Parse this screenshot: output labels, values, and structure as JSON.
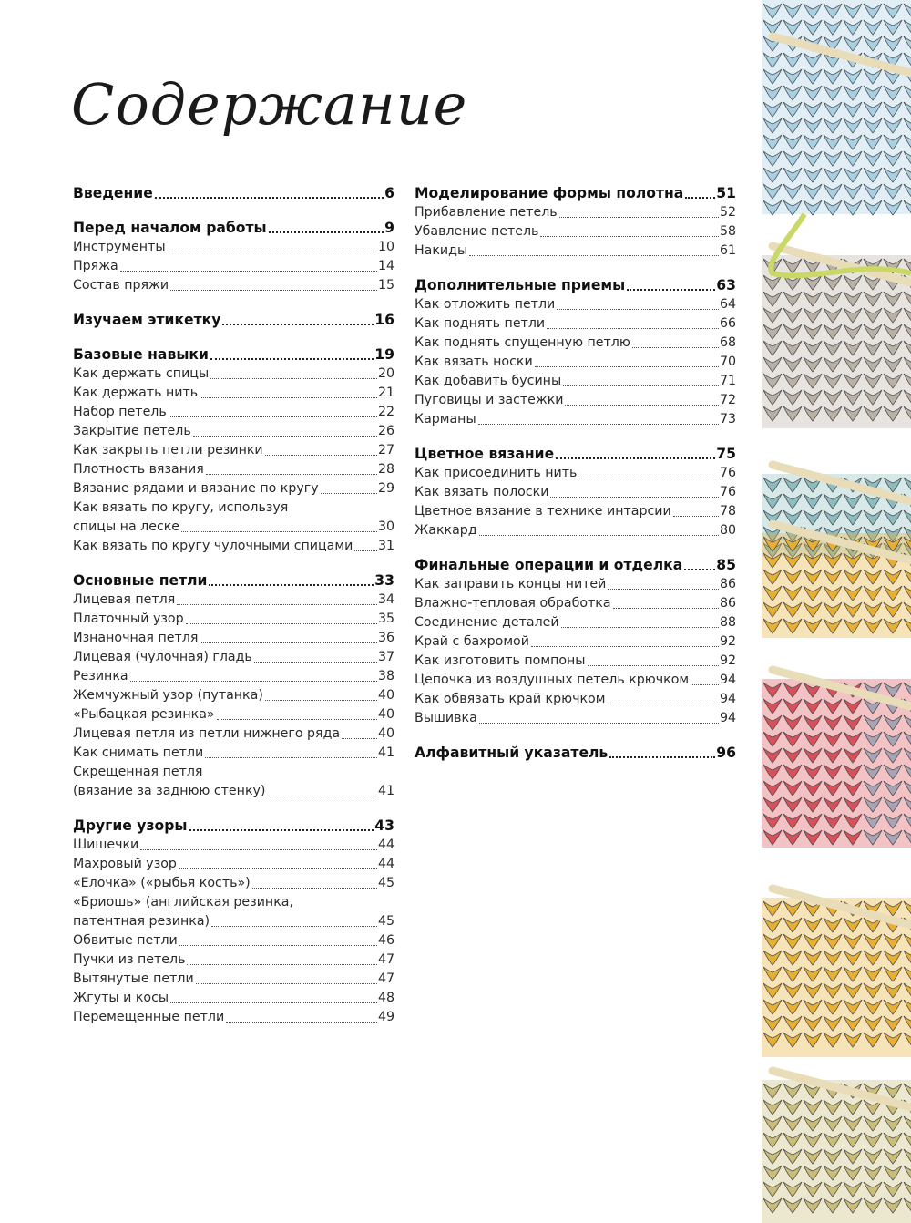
{
  "page_title": "Содержание",
  "colors": {
    "swatch_blue": "#a9cfe3",
    "swatch_gray": "#b9b1a6",
    "swatch_teal": "#8cbcbf",
    "swatch_yellow": "#e8b033",
    "swatch_red": "#d9505a",
    "swatch_khaki": "#c9bd78"
  },
  "columns": [
    [
      {
        "title": "Введение",
        "page": "6",
        "items": []
      },
      {
        "title": "Перед началом работы",
        "page": "9",
        "items": [
          {
            "lines": [
              "Инструменты"
            ],
            "page": "10"
          },
          {
            "lines": [
              "Пряжа"
            ],
            "page": "14"
          },
          {
            "lines": [
              "Состав пряжи"
            ],
            "page": "15"
          }
        ]
      },
      {
        "title": "Изучаем этикетку",
        "page": "16",
        "items": []
      },
      {
        "title": "Базовые навыки",
        "page": "19",
        "items": [
          {
            "lines": [
              "Как держать спицы"
            ],
            "page": "20"
          },
          {
            "lines": [
              "Как держать нить"
            ],
            "page": "21"
          },
          {
            "lines": [
              "Набор петель"
            ],
            "page": "22"
          },
          {
            "lines": [
              "Закрытие петель"
            ],
            "page": "26"
          },
          {
            "lines": [
              "Как закрыть петли резинки"
            ],
            "page": "27"
          },
          {
            "lines": [
              "Плотность вязания"
            ],
            "page": "28"
          },
          {
            "lines": [
              "Вязание рядами и вязание по кругу"
            ],
            "page": "29"
          },
          {
            "lines": [
              "Как вязать по кругу, используя",
              "спицы на леске"
            ],
            "page": "30"
          },
          {
            "lines": [
              "Как вязать по кругу чулочными спицами"
            ],
            "page": "31"
          }
        ]
      },
      {
        "title": "Основные петли",
        "page": "33",
        "items": [
          {
            "lines": [
              "Лицевая петля"
            ],
            "page": "34"
          },
          {
            "lines": [
              "Платочный узор"
            ],
            "page": "35"
          },
          {
            "lines": [
              "Изнаночная петля"
            ],
            "page": "36"
          },
          {
            "lines": [
              "Лицевая (чулочная) гладь"
            ],
            "page": "37"
          },
          {
            "lines": [
              "Резинка"
            ],
            "page": "38"
          },
          {
            "lines": [
              "Жемчужный узор (путанка)"
            ],
            "page": "40"
          },
          {
            "lines": [
              "«Рыбацкая резинка»"
            ],
            "page": "40"
          },
          {
            "lines": [
              "Лицевая петля из петли нижнего ряда"
            ],
            "page": "40"
          },
          {
            "lines": [
              "Как снимать петли"
            ],
            "page": "41"
          },
          {
            "lines": [
              "Скрещенная петля",
              "(вязание за заднюю стенку)"
            ],
            "page": "41"
          }
        ]
      },
      {
        "title": "Другие узоры",
        "page": "43",
        "items": [
          {
            "lines": [
              "Шишечки"
            ],
            "page": "44"
          },
          {
            "lines": [
              "Махровый узор"
            ],
            "page": "44"
          },
          {
            "lines": [
              "«Елочка» («рыбья кость»)"
            ],
            "page": "45"
          },
          {
            "lines": [
              "«Бриошь» (английская резинка,",
              "патентная резинка)"
            ],
            "page": "45"
          },
          {
            "lines": [
              "Обвитые петли"
            ],
            "page": "46"
          },
          {
            "lines": [
              "Пучки из петель"
            ],
            "page": "47"
          },
          {
            "lines": [
              "Вытянутые петли"
            ],
            "page": "47"
          },
          {
            "lines": [
              "Жгуты и косы"
            ],
            "page": "48"
          },
          {
            "lines": [
              "Перемещенные петли"
            ],
            "page": "49"
          }
        ]
      }
    ],
    [
      {
        "title": "Моделирование формы полотна",
        "page": "51",
        "items": [
          {
            "lines": [
              "Прибавление петель"
            ],
            "page": "52"
          },
          {
            "lines": [
              "Убавление петель"
            ],
            "page": "58"
          },
          {
            "lines": [
              "Накиды"
            ],
            "page": "61"
          }
        ]
      },
      {
        "title": "Дополнительные приемы",
        "page": "63",
        "items": [
          {
            "lines": [
              "Как отложить петли"
            ],
            "page": "64"
          },
          {
            "lines": [
              "Как поднять петли"
            ],
            "page": "66"
          },
          {
            "lines": [
              "Как поднять спущенную петлю"
            ],
            "page": "68"
          },
          {
            "lines": [
              "Как вязать носки"
            ],
            "page": "70"
          },
          {
            "lines": [
              "Как добавить бусины"
            ],
            "page": "71"
          },
          {
            "lines": [
              "Пуговицы и застежки"
            ],
            "page": "72"
          },
          {
            "lines": [
              "Карманы"
            ],
            "page": "73"
          }
        ]
      },
      {
        "title": "Цветное вязание",
        "page": "75",
        "items": [
          {
            "lines": [
              "Как присоединить нить"
            ],
            "page": "76"
          },
          {
            "lines": [
              "Как вязать полоски"
            ],
            "page": "76"
          },
          {
            "lines": [
              "Цветное вязание в технике интарсии"
            ],
            "page": "78"
          },
          {
            "lines": [
              "Жаккард"
            ],
            "page": "80"
          }
        ]
      },
      {
        "title": "Финальные операции и отделка",
        "page": "85",
        "items": [
          {
            "lines": [
              "Как заправить концы нитей"
            ],
            "page": "86"
          },
          {
            "lines": [
              "Влажно-тепловая обработка"
            ],
            "page": "86"
          },
          {
            "lines": [
              "Соединение деталей"
            ],
            "page": "88"
          },
          {
            "lines": [
              "Край с бахромой"
            ],
            "page": "92"
          },
          {
            "lines": [
              "Как изготовить помпоны"
            ],
            "page": "92"
          },
          {
            "lines": [
              "Цепочка из воздушных петель крючком"
            ],
            "page": "94"
          },
          {
            "lines": [
              "Как обвязать край крючком"
            ],
            "page": "94"
          },
          {
            "lines": [
              "Вышивка"
            ],
            "page": "94"
          }
        ]
      },
      {
        "title": "Алфавитный указатель",
        "page": "96",
        "items": []
      }
    ]
  ]
}
